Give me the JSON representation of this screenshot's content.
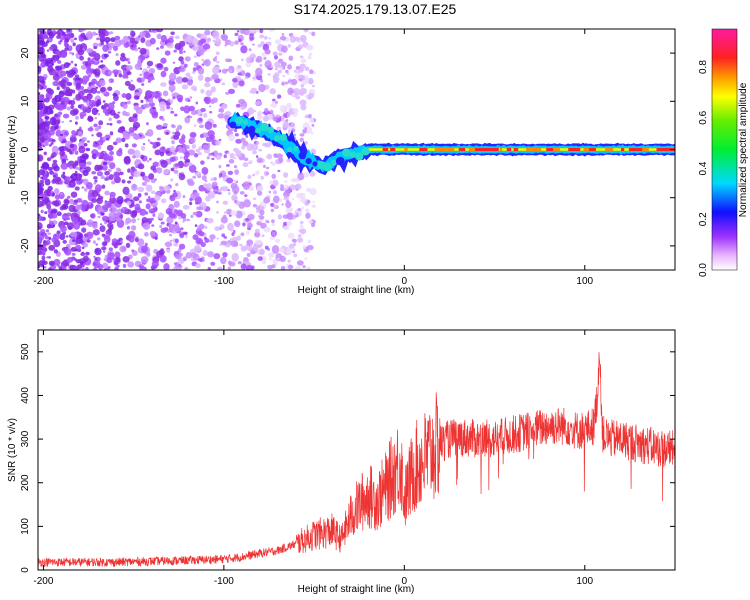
{
  "title": "S174.2025.179.13.07.E25",
  "colors": {
    "snr_line": "#ee3333",
    "spectrogram_scatter": "#8a2be2",
    "frame": "#000000"
  },
  "chart_data": [
    {
      "type": "heatmap",
      "xlabel": "Height of straight line (km)",
      "ylabel": "Frequency (Hz)",
      "xlim": [
        -203,
        150
      ],
      "ylim": [
        -25,
        25
      ],
      "xticks": [
        -200,
        -100,
        0,
        100
      ],
      "yticks": [
        -20,
        -10,
        0,
        10,
        20
      ],
      "grid": false,
      "colorbar": {
        "label": "Normalized spectral amplitude",
        "range": [
          0.0,
          0.95
        ],
        "ticks": [
          0.0,
          0.2,
          0.4,
          0.6,
          0.8
        ],
        "colormap": "rainbow (magenta-blue-cyan-green-yellow-red-magenta)"
      },
      "trace": {
        "x": [
          -95,
          -85,
          -75,
          -65,
          -55,
          -45,
          -38,
          -30,
          -20,
          -12,
          0,
          20,
          50,
          80,
          100,
          105,
          120,
          150
        ],
        "frequency": [
          6,
          5,
          3.5,
          1,
          -2,
          -3.5,
          -2,
          -1,
          0,
          0,
          0,
          0,
          0,
          0,
          0,
          0,
          0,
          0
        ]
      },
      "noise_region_x": [
        -203,
        -50
      ]
    },
    {
      "type": "line",
      "xlabel": "Height of straight line (km)",
      "ylabel": "SNR (10 * v/v)",
      "xlim": [
        -203,
        150
      ],
      "ylim": [
        0,
        550
      ],
      "xticks": [
        -200,
        -100,
        0,
        100
      ],
      "yticks": [
        0,
        100,
        200,
        300,
        400,
        500
      ],
      "grid": false,
      "series": [
        {
          "x": [
            -203,
            -180,
            -160,
            -140,
            -120,
            -100,
            -90,
            -80,
            -70,
            -60,
            -50,
            -40,
            -35,
            -30,
            -25,
            -20,
            -15,
            -10,
            -5,
            -2,
            0,
            5,
            10,
            15,
            20,
            25,
            30,
            40,
            50,
            60,
            70,
            80,
            90,
            95,
            100,
            105,
            107,
            108,
            110,
            115,
            120,
            130,
            140,
            150
          ],
          "values": [
            18,
            18,
            18,
            20,
            22,
            25,
            30,
            38,
            45,
            60,
            80,
            90,
            70,
            120,
            150,
            170,
            160,
            190,
            230,
            250,
            160,
            230,
            250,
            270,
            290,
            300,
            305,
            300,
            300,
            310,
            320,
            330,
            330,
            320,
            320,
            330,
            400,
            500,
            310,
            300,
            300,
            290,
            280,
            275
          ]
        }
      ]
    }
  ]
}
